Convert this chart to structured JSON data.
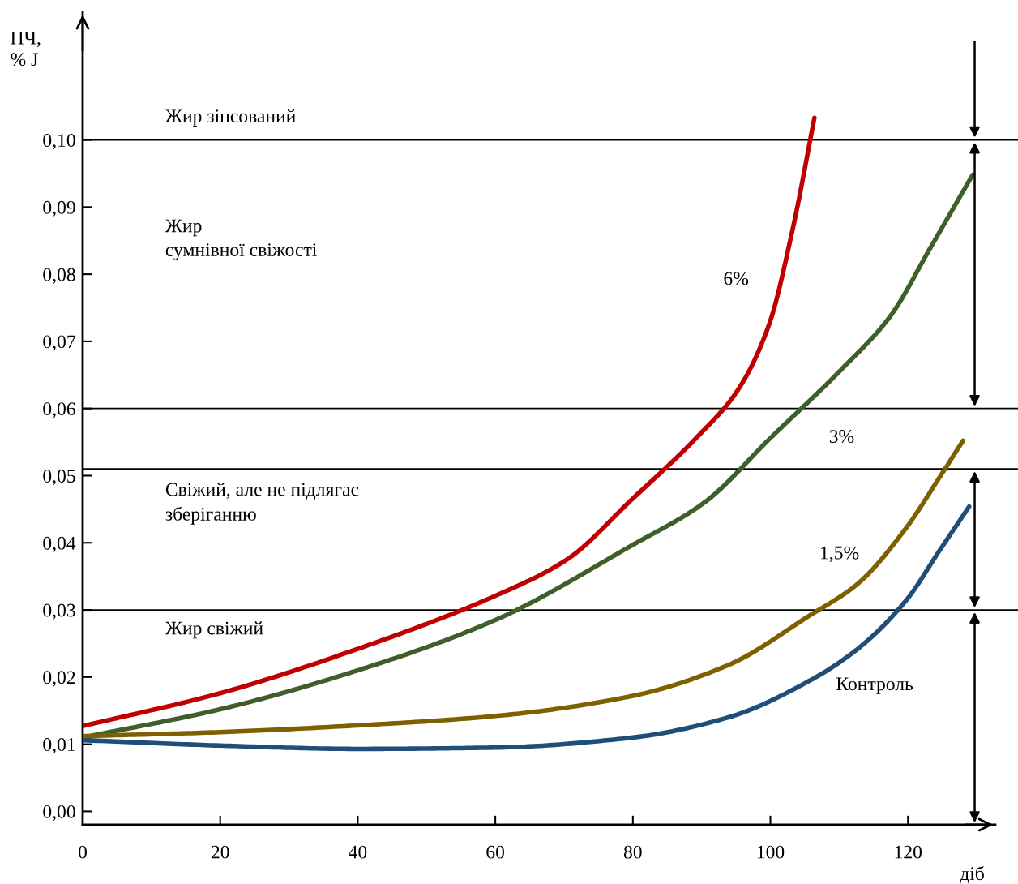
{
  "chart_data": {
    "type": "line",
    "xlabel": "діб",
    "ylabel": "ПЧ,\n% J",
    "xlim": [
      0,
      136
    ],
    "ylim": [
      -0.002,
      0.119
    ],
    "xticks": [
      0,
      20,
      40,
      60,
      80,
      100,
      120
    ],
    "yticks": [
      {
        "value": 0,
        "label": "0,00"
      },
      {
        "value": 0.01,
        "label": "0,01"
      },
      {
        "value": 0.02,
        "label": "0,02"
      },
      {
        "value": 0.03,
        "label": "0,03"
      },
      {
        "value": 0.04,
        "label": "0,04"
      },
      {
        "value": 0.05,
        "label": "0,05"
      },
      {
        "value": 0.06,
        "label": "0,06"
      },
      {
        "value": 0.07,
        "label": "0,07"
      },
      {
        "value": 0.08,
        "label": "0,08"
      },
      {
        "value": 0.09,
        "label": "0,09"
      },
      {
        "value": 0.1,
        "label": "0,10"
      }
    ],
    "grid": false,
    "legend": false,
    "marker": "none",
    "line_style": "solid",
    "series": [
      {
        "name": "6%",
        "color": "#c00000",
        "x": [
          0,
          20,
          40,
          60,
          70.4,
          80,
          89.2,
          95.3,
          99.8,
          103.3,
          106.4
        ],
        "values": [
          0.0127,
          0.0176,
          0.0242,
          0.0321,
          0.0375,
          0.0466,
          0.0556,
          0.0628,
          0.0725,
          0.087,
          0.1033
        ]
      },
      {
        "name": "3%",
        "color": "#3f5f2a",
        "x": [
          0,
          20,
          40,
          60,
          80,
          90.4,
          100,
          110.4,
          117.4,
          123.3,
          129.4
        ],
        "values": [
          0.011,
          0.0152,
          0.021,
          0.0285,
          0.0397,
          0.046,
          0.0556,
          0.0659,
          0.0737,
          0.084,
          0.0948
        ]
      },
      {
        "name": "1,5%",
        "color": "#7f6000",
        "x": [
          0,
          20,
          40,
          60,
          80,
          93.9,
          105.6,
          112.7,
          119.8,
          124.5,
          128
        ],
        "values": [
          0.0112,
          0.0118,
          0.0128,
          0.0142,
          0.0172,
          0.0218,
          0.0291,
          0.0339,
          0.0423,
          0.0496,
          0.0552
        ]
      },
      {
        "name": "Контроль",
        "color": "#1f4e79",
        "x": [
          0,
          20,
          40,
          60,
          80,
          93.9,
          105.6,
          112.7,
          119.8,
          124.5,
          128.9
        ],
        "values": [
          0.0106,
          0.0098,
          0.0093,
          0.0095,
          0.011,
          0.014,
          0.0194,
          0.0242,
          0.0315,
          0.0387,
          0.0454
        ]
      }
    ],
    "ref_lines": [
      {
        "axis": "y",
        "value": 0.1,
        "color": "#000000"
      },
      {
        "axis": "y",
        "value": 0.06,
        "color": "#000000"
      },
      {
        "axis": "y",
        "value": 0.051,
        "color": "#000000"
      },
      {
        "axis": "y",
        "value": 0.03,
        "color": "#000000"
      }
    ],
    "annotations": [
      "Жир зіпсований",
      "Жир\nсумнівної свіжості",
      "Свіжий, але не підлягає\nзберіганню",
      "Жир свіжий"
    ]
  }
}
